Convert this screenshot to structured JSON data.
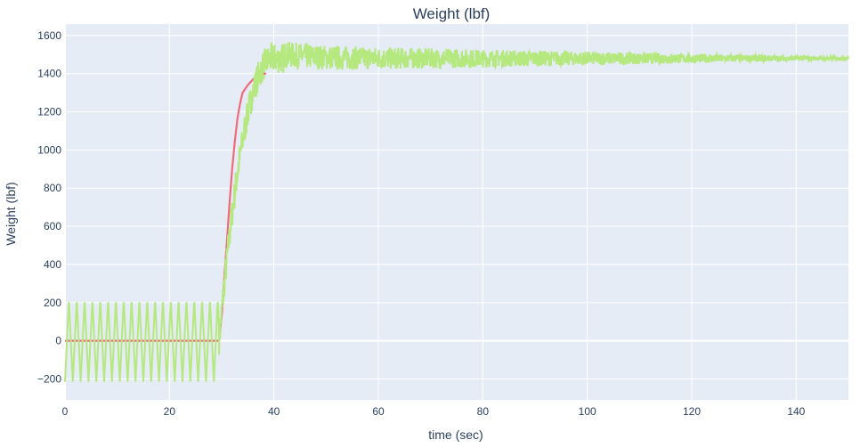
{
  "chart_data": {
    "type": "line",
    "title": "Weight (lbf)",
    "xlabel": "time (sec)",
    "ylabel": "Weight (lbf)",
    "xlim": [
      0,
      150
    ],
    "ylim": [
      -310,
      1660
    ],
    "x_ticks": [
      0,
      20,
      40,
      60,
      80,
      100,
      120,
      140
    ],
    "y_ticks": [
      -200,
      0,
      200,
      400,
      600,
      800,
      1000,
      1200,
      1400,
      1600
    ],
    "grid": true,
    "legend": "none",
    "colors": {
      "plot_background": "#e5ecf6",
      "grid": "#ffffff",
      "series_filtered": "#ef6b7b",
      "series_raw": "#b6e880"
    },
    "series": [
      {
        "color": "#b6e880",
        "description": "raw signal: oscillates roughly +/-215 lbf around 0 with period about 1.5 s until t=29.5 s, rises to about 1480 lbf by t=40 s with decaying noise",
        "baseline": 0,
        "initial_oscillation_amplitude": 215,
        "oscillation_period_sec": 1.5,
        "step_start_time": 29.5,
        "step_end_time": 40,
        "final_value": 1480,
        "noise_amplitude_at_40s": 70,
        "noise_amplitude_at_150s": 8
      },
      {
        "color": "#ef6b7b",
        "description": "filtered signal: flat at 0 until t=29.5 s, steps up to about 1400 lbf by t=38 s",
        "samples": [
          [
            0,
            0
          ],
          [
            29.5,
            0
          ],
          [
            30,
            130
          ],
          [
            30.5,
            330
          ],
          [
            31,
            520
          ],
          [
            31.5,
            720
          ],
          [
            32,
            900
          ],
          [
            32.5,
            1040
          ],
          [
            33,
            1160
          ],
          [
            33.5,
            1240
          ],
          [
            34,
            1300
          ],
          [
            35,
            1340
          ],
          [
            36,
            1370
          ],
          [
            37,
            1390
          ],
          [
            38,
            1400
          ]
        ]
      }
    ]
  }
}
